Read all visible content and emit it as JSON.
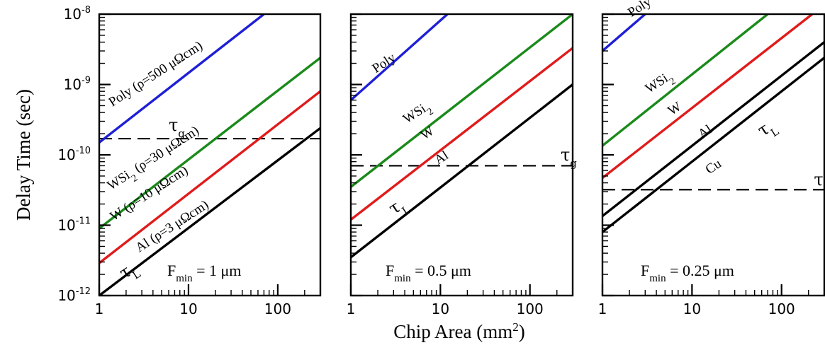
{
  "chart_data": {
    "type": "line",
    "xlabel": "Chip Area (mm",
    "xlabel_sup": "2",
    "xlabel_tail": ")",
    "ylabel": "Delay Time (sec)",
    "xscale": "log",
    "yscale": "log",
    "xlim": [
      1,
      300
    ],
    "ylim": [
      1e-12,
      1e-08
    ],
    "x_ticks": [
      {
        "value": 1,
        "label": "1"
      },
      {
        "value": 10,
        "label": "10"
      },
      {
        "value": 100,
        "label": "100"
      }
    ],
    "y_ticks": [
      {
        "value": 1e-08,
        "base": "10",
        "exp": "-8"
      },
      {
        "value": 1e-09,
        "base": "10",
        "exp": "-9"
      },
      {
        "value": 1e-10,
        "base": "10",
        "exp": "-10"
      },
      {
        "value": 1e-11,
        "base": "10",
        "exp": "-11"
      },
      {
        "value": 1e-12,
        "base": "10",
        "exp": "-12"
      }
    ],
    "panels": [
      {
        "fmin_label": "F",
        "fmin_sub": "min",
        "fmin_value": " = 1 μm",
        "tau_g": 1.7e-10,
        "tau_g_label": "τ",
        "tau_g_sub": "g",
        "tau_L_label": "τ",
        "tau_L_sub": "L",
        "series": [
          {
            "name": "Poly (ρ=500 μΩcm)",
            "color": "#1f1fd6",
            "points": [
              [
                1,
                1.5e-10
              ],
              [
                70,
                1e-08
              ]
            ]
          },
          {
            "name": "WSi",
            "name_sub": "2",
            "name_tail": " (ρ=30 μΩcm)",
            "color": "#1a8a1a",
            "points": [
              [
                1,
                9e-12
              ],
              [
                300,
                2.4e-09
              ]
            ]
          },
          {
            "name": "W (ρ=10 μΩcm)",
            "color": "#e01b1b",
            "points": [
              [
                1,
                2.9e-12
              ],
              [
                300,
                8e-10
              ]
            ]
          },
          {
            "name": "Al (ρ=3 μΩcm)",
            "color": "#000000",
            "points": [
              [
                1,
                1e-12
              ],
              [
                300,
                2.4e-10
              ]
            ]
          }
        ]
      },
      {
        "fmin_label": "F",
        "fmin_sub": "min",
        "fmin_value": " = 0.5 μm",
        "tau_g": 7e-11,
        "tau_g_label": "τ",
        "tau_g_sub": "g",
        "tau_L_label": "τ",
        "tau_L_sub": "L",
        "series": [
          {
            "name": "Poly",
            "color": "#1f1fd6",
            "points": [
              [
                1,
                6e-10
              ],
              [
                12,
                1e-08
              ]
            ]
          },
          {
            "name": "WSi",
            "name_sub": "2",
            "name_tail": "",
            "color": "#1a8a1a",
            "points": [
              [
                1,
                3.5e-11
              ],
              [
                300,
                1e-08
              ]
            ]
          },
          {
            "name": "W",
            "color": "#e01b1b",
            "points": [
              [
                1,
                1.2e-11
              ],
              [
                300,
                3.3e-09
              ]
            ]
          },
          {
            "name": "Al",
            "color": "#000000",
            "points": [
              [
                1,
                3.5e-12
              ],
              [
                300,
                1e-09
              ]
            ]
          }
        ]
      },
      {
        "fmin_label": "F",
        "fmin_sub": "min",
        "fmin_value": " = 0.25 μm",
        "tau_g": 3.2e-11,
        "tau_g_label": "τ",
        "tau_g_sub": "g",
        "tau_L_label": "τ",
        "tau_L_sub": "L",
        "series": [
          {
            "name": "Poly",
            "color": "#1f1fd6",
            "points": [
              [
                1,
                3e-09
              ],
              [
                3,
                1e-08
              ]
            ]
          },
          {
            "name": "WSi",
            "name_sub": "2",
            "name_tail": "",
            "color": "#1a8a1a",
            "points": [
              [
                1,
                1.35e-10
              ],
              [
                70,
                1e-08
              ]
            ]
          },
          {
            "name": "W",
            "color": "#e01b1b",
            "points": [
              [
                1,
                4.7e-11
              ],
              [
                220,
                1e-08
              ]
            ]
          },
          {
            "name": "Al",
            "color": "#000000",
            "points": [
              [
                1,
                1.35e-11
              ],
              [
                300,
                4e-09
              ]
            ]
          },
          {
            "name": "Cu",
            "color": "#000000",
            "points": [
              [
                1,
                8e-12
              ],
              [
                300,
                2.4e-09
              ]
            ]
          }
        ]
      }
    ]
  }
}
